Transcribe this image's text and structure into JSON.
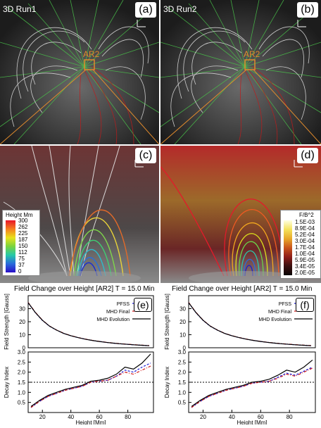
{
  "panels": {
    "a": {
      "tag": "(a)",
      "run_label": "3D Run1",
      "ar_label": "AR2"
    },
    "b": {
      "tag": "(b)",
      "run_label": "3D Run2",
      "ar_label": "AR2"
    },
    "c": {
      "tag": "(c)"
    },
    "d": {
      "tag": "(d)"
    },
    "e": {
      "tag": "(e)"
    },
    "f": {
      "tag": "(f)"
    }
  },
  "colorbar_height": {
    "title": "Height Mm",
    "ticks": [
      "300",
      "262",
      "225",
      "187",
      "150",
      "112",
      "75",
      "37",
      "0"
    ]
  },
  "colorbar_fb2": {
    "title": "F/B^2",
    "ticks": [
      "1.5E-03",
      "8.9E-04",
      "5.2E-04",
      "3.0E-04",
      "1.7E-04",
      "1.0E-04",
      "5.9E-05",
      "3.4E-05",
      "2.0E-05"
    ]
  },
  "plot_titles": {
    "left": "Field Change over Height [AR2] T = 15.0 Min",
    "right": "Field Change over Height [AR2] T = 15.0 Min"
  },
  "colors": {
    "pfss": "#1a1ad6",
    "mhd_final": "#d11a1a",
    "mhd_evolution": "#000000",
    "decay_ref": "#000000"
  },
  "chart_data": [
    {
      "type": "line",
      "panel": "(e) upper",
      "ylabel": "Field Strength [Gauss]",
      "xlim": [
        10,
        98
      ],
      "ylim": [
        0,
        40
      ],
      "yticks": [
        0,
        10,
        20,
        30
      ],
      "grid": false,
      "legend_position": "top-right",
      "x": [
        10,
        15,
        20,
        25,
        30,
        35,
        40,
        45,
        50,
        55,
        60,
        65,
        70,
        75,
        80,
        85,
        90,
        95
      ],
      "series": [
        {
          "name": "PFSS",
          "style": "dashed",
          "values": [
            34.5,
            27.0,
            21.0,
            16.5,
            13.5,
            11.0,
            9.2,
            7.8,
            6.6,
            5.6,
            4.8,
            4.1,
            3.5,
            3.0,
            2.6,
            2.2,
            1.9,
            1.6
          ]
        },
        {
          "name": "MHD Final",
          "style": "dash-dot",
          "values": [
            34.8,
            27.3,
            21.2,
            16.7,
            13.6,
            11.1,
            9.3,
            7.9,
            6.7,
            5.7,
            4.9,
            4.2,
            3.6,
            3.1,
            2.7,
            2.3,
            2.0,
            1.7
          ]
        },
        {
          "name": "MHD Evolution",
          "style": "solid",
          "values": [
            34.6,
            27.1,
            21.1,
            16.6,
            13.5,
            11.0,
            9.2,
            7.8,
            6.6,
            5.6,
            4.8,
            4.1,
            3.5,
            3.0,
            2.6,
            2.2,
            1.9,
            1.6
          ]
        }
      ]
    },
    {
      "type": "line",
      "panel": "(e) lower",
      "xlabel": "Height [Mm]",
      "ylabel": "Decay Index",
      "xlim": [
        10,
        98
      ],
      "ylim": [
        0,
        3.0
      ],
      "yticks": [
        0.5,
        1.0,
        1.5,
        2.0,
        2.5,
        3.0
      ],
      "xticks": [
        20,
        40,
        60,
        80
      ],
      "reference_line": 1.5,
      "x": [
        12,
        18,
        24,
        30,
        36,
        42,
        48,
        54,
        60,
        66,
        72,
        78,
        84,
        90,
        96
      ],
      "series": [
        {
          "name": "PFSS",
          "style": "dashed",
          "values": [
            0.25,
            0.55,
            0.8,
            0.95,
            1.1,
            1.2,
            1.3,
            1.5,
            1.55,
            1.6,
            1.8,
            2.1,
            2.0,
            2.25,
            2.45
          ]
        },
        {
          "name": "MHD Final",
          "style": "dash-dot",
          "values": [
            0.25,
            0.55,
            0.8,
            0.95,
            1.1,
            1.2,
            1.3,
            1.5,
            1.55,
            1.6,
            1.8,
            2.0,
            1.9,
            2.1,
            2.3
          ]
        },
        {
          "name": "MHD Evolution",
          "style": "solid",
          "values": [
            0.3,
            0.6,
            0.85,
            1.0,
            1.15,
            1.25,
            1.35,
            1.55,
            1.6,
            1.7,
            1.9,
            2.25,
            2.15,
            2.45,
            2.9
          ]
        }
      ]
    },
    {
      "type": "line",
      "panel": "(f) upper",
      "ylabel": "Field Strength [Gauss]",
      "xlim": [
        10,
        98
      ],
      "ylim": [
        0,
        40
      ],
      "yticks": [
        0,
        10,
        20,
        30
      ],
      "grid": false,
      "legend_position": "top-right",
      "x": [
        10,
        15,
        20,
        25,
        30,
        35,
        40,
        45,
        50,
        55,
        60,
        65,
        70,
        75,
        80,
        85,
        90,
        95
      ],
      "series": [
        {
          "name": "PFSS",
          "style": "dashed",
          "values": [
            34.5,
            27.0,
            21.0,
            16.5,
            13.5,
            11.0,
            9.2,
            7.8,
            6.6,
            5.6,
            4.8,
            4.1,
            3.5,
            3.0,
            2.6,
            2.2,
            1.9,
            1.6
          ]
        },
        {
          "name": "MHD Final",
          "style": "dash-dot",
          "values": [
            34.8,
            27.3,
            21.2,
            16.7,
            13.6,
            11.1,
            9.3,
            7.9,
            6.7,
            5.7,
            4.9,
            4.2,
            3.6,
            3.1,
            2.7,
            2.3,
            2.0,
            1.7
          ]
        },
        {
          "name": "MHD Evolution",
          "style": "solid",
          "values": [
            34.6,
            27.1,
            21.1,
            16.6,
            13.5,
            11.0,
            9.2,
            7.8,
            6.6,
            5.6,
            4.8,
            4.1,
            3.5,
            3.0,
            2.6,
            2.2,
            1.9,
            1.6
          ]
        }
      ]
    },
    {
      "type": "line",
      "panel": "(f) lower",
      "xlabel": "Height [Mm]",
      "ylabel": "Decay Index",
      "xlim": [
        10,
        98
      ],
      "ylim": [
        0,
        3.0
      ],
      "yticks": [
        0.5,
        1.0,
        1.5,
        2.0,
        2.5,
        3.0
      ],
      "xticks": [
        20,
        40,
        60,
        80
      ],
      "reference_line": 1.5,
      "x": [
        12,
        18,
        24,
        30,
        36,
        42,
        48,
        54,
        60,
        66,
        72,
        78,
        84,
        90,
        96
      ],
      "series": [
        {
          "name": "PFSS",
          "style": "dashed",
          "values": [
            0.25,
            0.55,
            0.8,
            0.95,
            1.1,
            1.2,
            1.3,
            1.45,
            1.5,
            1.55,
            1.75,
            1.95,
            1.85,
            2.05,
            2.25
          ]
        },
        {
          "name": "MHD Final",
          "style": "dash-dot",
          "values": [
            0.25,
            0.55,
            0.8,
            0.95,
            1.1,
            1.2,
            1.3,
            1.45,
            1.5,
            1.55,
            1.7,
            1.9,
            1.8,
            2.0,
            2.2
          ]
        },
        {
          "name": "MHD Evolution",
          "style": "solid",
          "values": [
            0.3,
            0.6,
            0.85,
            1.0,
            1.15,
            1.25,
            1.35,
            1.5,
            1.55,
            1.65,
            1.85,
            2.1,
            2.0,
            2.25,
            2.6
          ]
        }
      ]
    }
  ]
}
